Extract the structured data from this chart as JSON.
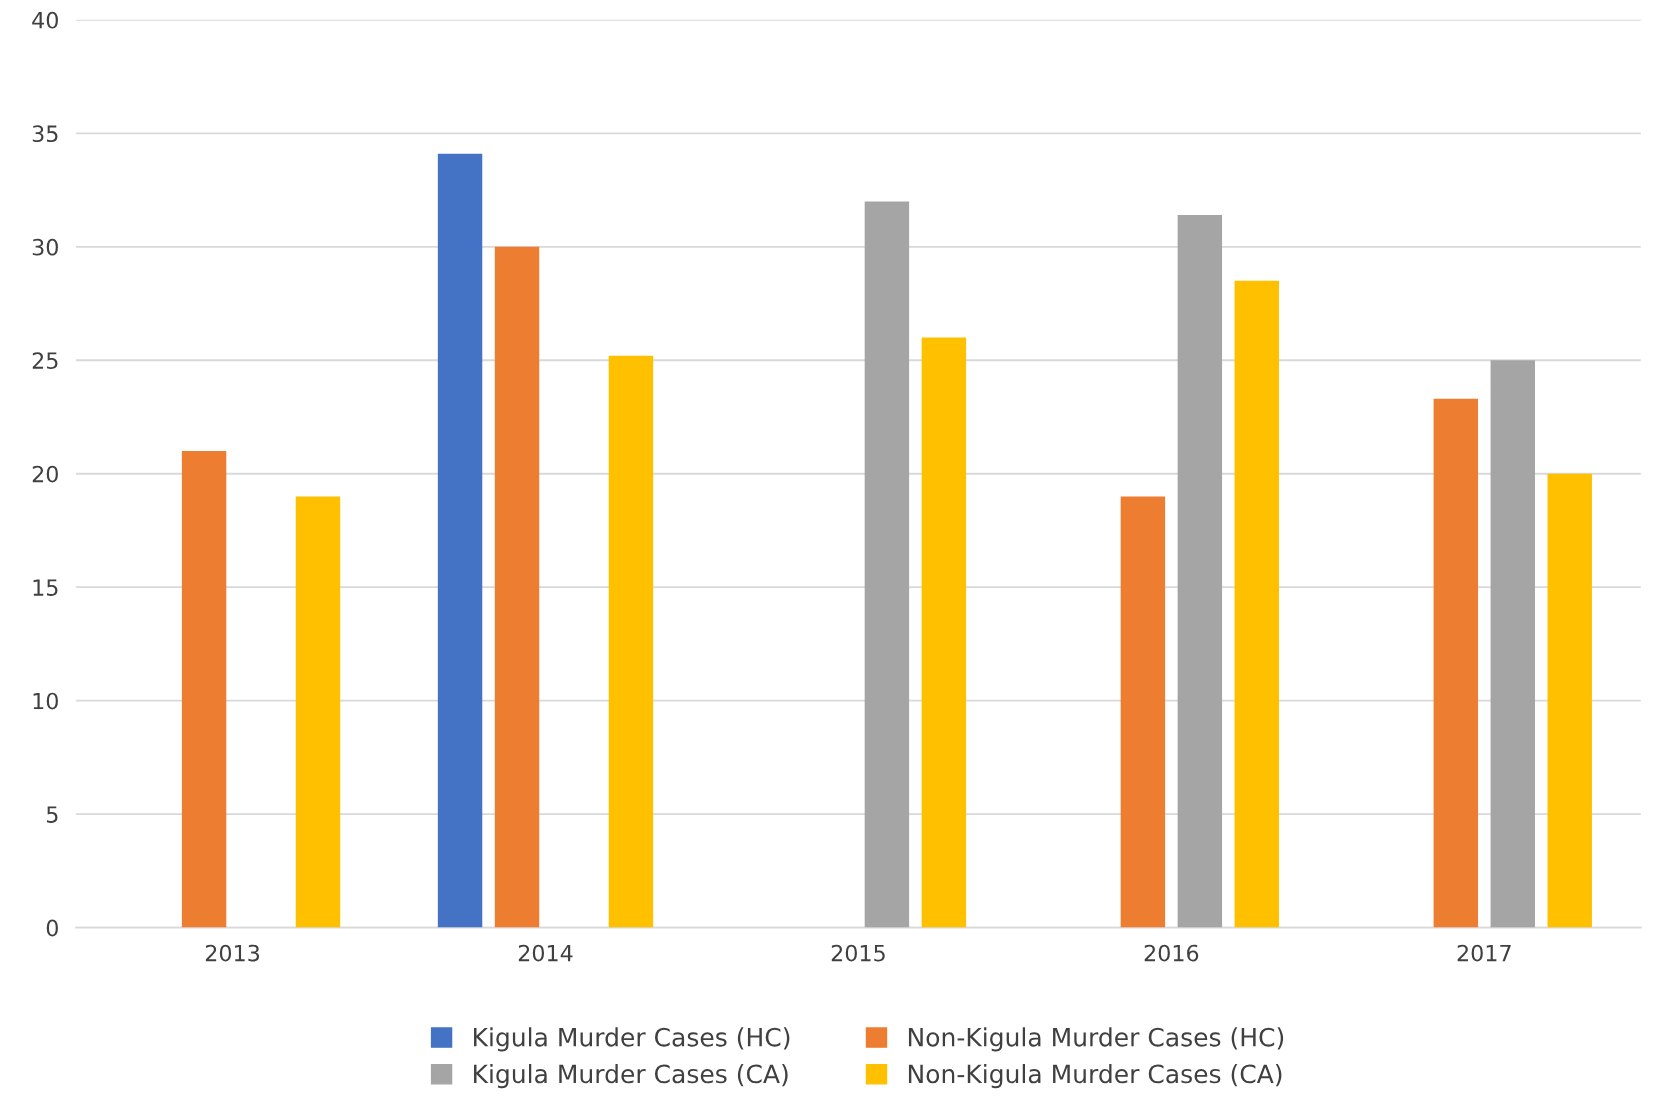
{
  "chart_data": {
    "type": "bar",
    "categories": [
      "2013",
      "2014",
      "2015",
      "2016",
      "2017"
    ],
    "series": [
      {
        "name": "Kigula Murder Cases (HC)",
        "color": "#4472c4",
        "values": [
          null,
          34.1,
          null,
          null,
          null
        ]
      },
      {
        "name": "Non-Kigula Murder Cases (HC)",
        "color": "#ed7d31",
        "values": [
          21,
          30,
          null,
          19,
          23.3
        ]
      },
      {
        "name": "Kigula Murder Cases (CA)",
        "color": "#a5a5a5",
        "values": [
          null,
          null,
          32,
          31.4,
          25
        ]
      },
      {
        "name": "Non-Kigula Murder Cases (CA)",
        "color": "#ffc000",
        "values": [
          19,
          25.2,
          26,
          28.5,
          20
        ]
      }
    ],
    "ylim": [
      0,
      40
    ],
    "yticks": [
      0,
      5,
      10,
      15,
      20,
      25,
      30,
      35,
      40
    ],
    "grid": "y",
    "legend": "bottom"
  }
}
